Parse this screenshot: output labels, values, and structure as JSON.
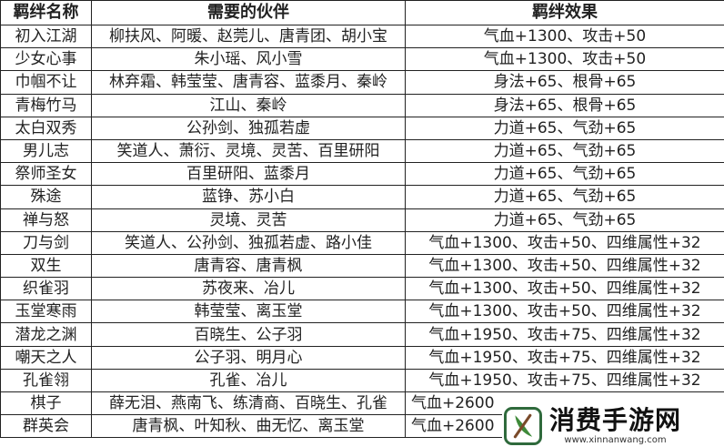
{
  "headers": [
    "羁绊名称",
    "需要的伙伴",
    "羁绊效果"
  ],
  "rows": [
    {
      "name": "初入江湖",
      "partners": "柳扶风、阿暖、赵莞儿、唐青团、胡小宝",
      "effect": "气血+1300、攻击+50"
    },
    {
      "name": "少女心事",
      "partners": "朱小瑶、风小雪",
      "effect": "气血+1300、攻击+50"
    },
    {
      "name": "巾帼不让",
      "partners": "林弃霜、韩莹莹、唐青容、蓝黍月、秦岭",
      "effect": "身法+65、根骨+65"
    },
    {
      "name": "青梅竹马",
      "partners": "江山、秦岭",
      "effect": "身法+65、根骨+65"
    },
    {
      "name": "太白双秀",
      "partners": "公孙剑、独孤若虚",
      "effect": "力道+65、气劲+65"
    },
    {
      "name": "男儿志",
      "partners": "笑道人、萧衍、灵境、灵苦、百里研阳",
      "effect": "力道+65、气劲+65"
    },
    {
      "name": "祭师圣女",
      "partners": "百里研阳、蓝黍月",
      "effect": "力道+65、气劲+65"
    },
    {
      "name": "殊途",
      "partners": "蓝铮、苏小白",
      "effect": "力道+65、气劲+65"
    },
    {
      "name": "禅与怒",
      "partners": "灵境、灵苦",
      "effect": "力道+65、气劲+65"
    },
    {
      "name": "刀与剑",
      "partners": "笑道人、公孙剑、独孤若虚、路小佳",
      "effect": "气血+1300、攻击+50、四维属性+32"
    },
    {
      "name": "双生",
      "partners": "唐青容、唐青枫",
      "effect": "气血+1300、攻击+50、四维属性+32"
    },
    {
      "name": "织雀羽",
      "partners": "苏夜来、冶儿",
      "effect": "气血+1300、攻击+50、四维属性+32"
    },
    {
      "name": "玉堂寒雨",
      "partners": "韩莹莹、离玉堂",
      "effect": "气血+1300、攻击+50、四维属性+32"
    },
    {
      "name": "潜龙之渊",
      "partners": "百晓生、公子羽",
      "effect": "气血+1950、攻击+75、四维属性+32"
    },
    {
      "name": "嘲天之人",
      "partners": "公子羽、明月心",
      "effect": "气血+1950、攻击+75、四维属性+32"
    },
    {
      "name": "孔雀翎",
      "partners": "孔雀、冶儿",
      "effect": "气血+1950、攻击+75、四维属性+32"
    },
    {
      "name": "棋子",
      "partners": "薛无泪、燕南飞、练清商、百晓生、孔雀",
      "effect": "气血+2600"
    },
    {
      "name": "群英会",
      "partners": "唐青枫、叶知秋、曲无忆、离玉堂",
      "effect": "气血+2600"
    }
  ],
  "watermark": {
    "title": "消费手游网",
    "url": "www.xinnanwang.com",
    "brand_color": "#2f6a3c"
  }
}
